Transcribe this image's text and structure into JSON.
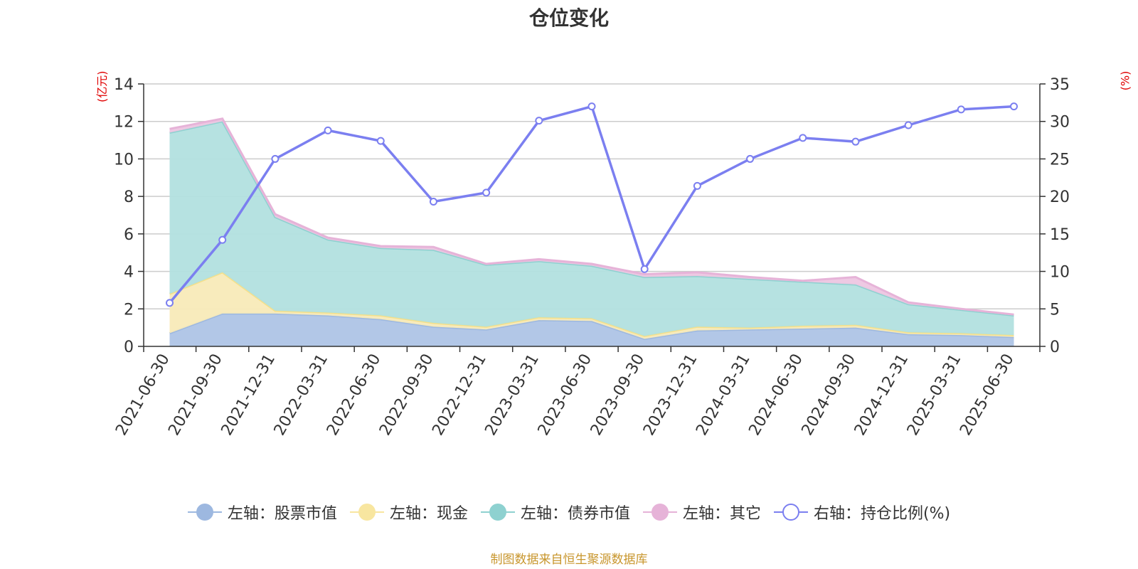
{
  "title": "仓位变化",
  "left_axis_unit": "(亿元)",
  "right_axis_unit": "(%)",
  "source": "制图数据来自恒生聚源数据库",
  "legend": [
    {
      "label": "左轴：股票市值",
      "color": "#9db8e0",
      "marker": "filled"
    },
    {
      "label": "左轴：现金",
      "color": "#f8e6a0",
      "marker": "filled"
    },
    {
      "label": "左轴：债券市值",
      "color": "#8ed1d0",
      "marker": "filled"
    },
    {
      "label": "左轴：其它",
      "color": "#e6b3d8",
      "marker": "filled"
    },
    {
      "label": "右轴：持仓比例(%)",
      "color": "#7b7ff0",
      "marker": "hollow"
    }
  ],
  "chart_data": {
    "type": "area",
    "categories": [
      "2021-06-30",
      "2021-09-30",
      "2021-12-31",
      "2022-03-31",
      "2022-06-30",
      "2022-09-30",
      "2022-12-31",
      "2023-03-31",
      "2023-06-30",
      "2023-09-30",
      "2023-12-31",
      "2024-03-31",
      "2024-06-30",
      "2024-09-30",
      "2024-12-31",
      "2025-03-31",
      "2025-06-30"
    ],
    "left_axis": {
      "min": 0,
      "max": 14,
      "ticks": [
        0,
        2,
        4,
        6,
        8,
        10,
        12,
        14
      ]
    },
    "right_axis": {
      "min": 0,
      "max": 35,
      "ticks": [
        0,
        5,
        10,
        15,
        20,
        25,
        30,
        35
      ]
    },
    "series": [
      {
        "name": "左轴：股票市值",
        "axis": "left",
        "stacked": true,
        "color": "#aec4e6",
        "line_color": "#9db8e0",
        "values": [
          0.7,
          1.75,
          1.75,
          1.65,
          1.45,
          1.05,
          0.9,
          1.4,
          1.35,
          0.4,
          0.85,
          0.9,
          0.95,
          1.0,
          0.65,
          0.6,
          0.5
        ]
      },
      {
        "name": "左轴：现金",
        "axis": "left",
        "stacked": true,
        "color": "#f8eab8",
        "line_color": "#f5e08a",
        "values": [
          2.1,
          2.2,
          0.15,
          0.15,
          0.2,
          0.2,
          0.15,
          0.15,
          0.15,
          0.15,
          0.2,
          0.1,
          0.15,
          0.15,
          0.1,
          0.1,
          0.1
        ]
      },
      {
        "name": "左轴：债券市值",
        "axis": "left",
        "stacked": true,
        "color": "#b2e0df",
        "line_color": "#8ed1d0",
        "values": [
          8.6,
          8.05,
          5.0,
          3.9,
          3.6,
          3.9,
          3.3,
          3.0,
          2.8,
          3.15,
          2.7,
          2.6,
          2.35,
          2.15,
          1.5,
          1.25,
          1.05
        ]
      },
      {
        "name": "左轴：其它",
        "axis": "left",
        "stacked": true,
        "color": "#edc6e2",
        "line_color": "#e6b3d8",
        "values": [
          0.2,
          0.15,
          0.15,
          0.1,
          0.1,
          0.15,
          0.05,
          0.1,
          0.1,
          0.15,
          0.2,
          0.1,
          0.05,
          0.4,
          0.1,
          0.05,
          0.05
        ]
      },
      {
        "name": "右轴：持仓比例(%)",
        "axis": "right",
        "stacked": false,
        "color": "#7b7ff0",
        "values": [
          5.8,
          14.2,
          25.0,
          28.8,
          27.4,
          19.3,
          20.5,
          30.1,
          32.0,
          10.3,
          21.4,
          25.0,
          27.8,
          27.3,
          29.5,
          31.6,
          32.0
        ]
      }
    ]
  }
}
